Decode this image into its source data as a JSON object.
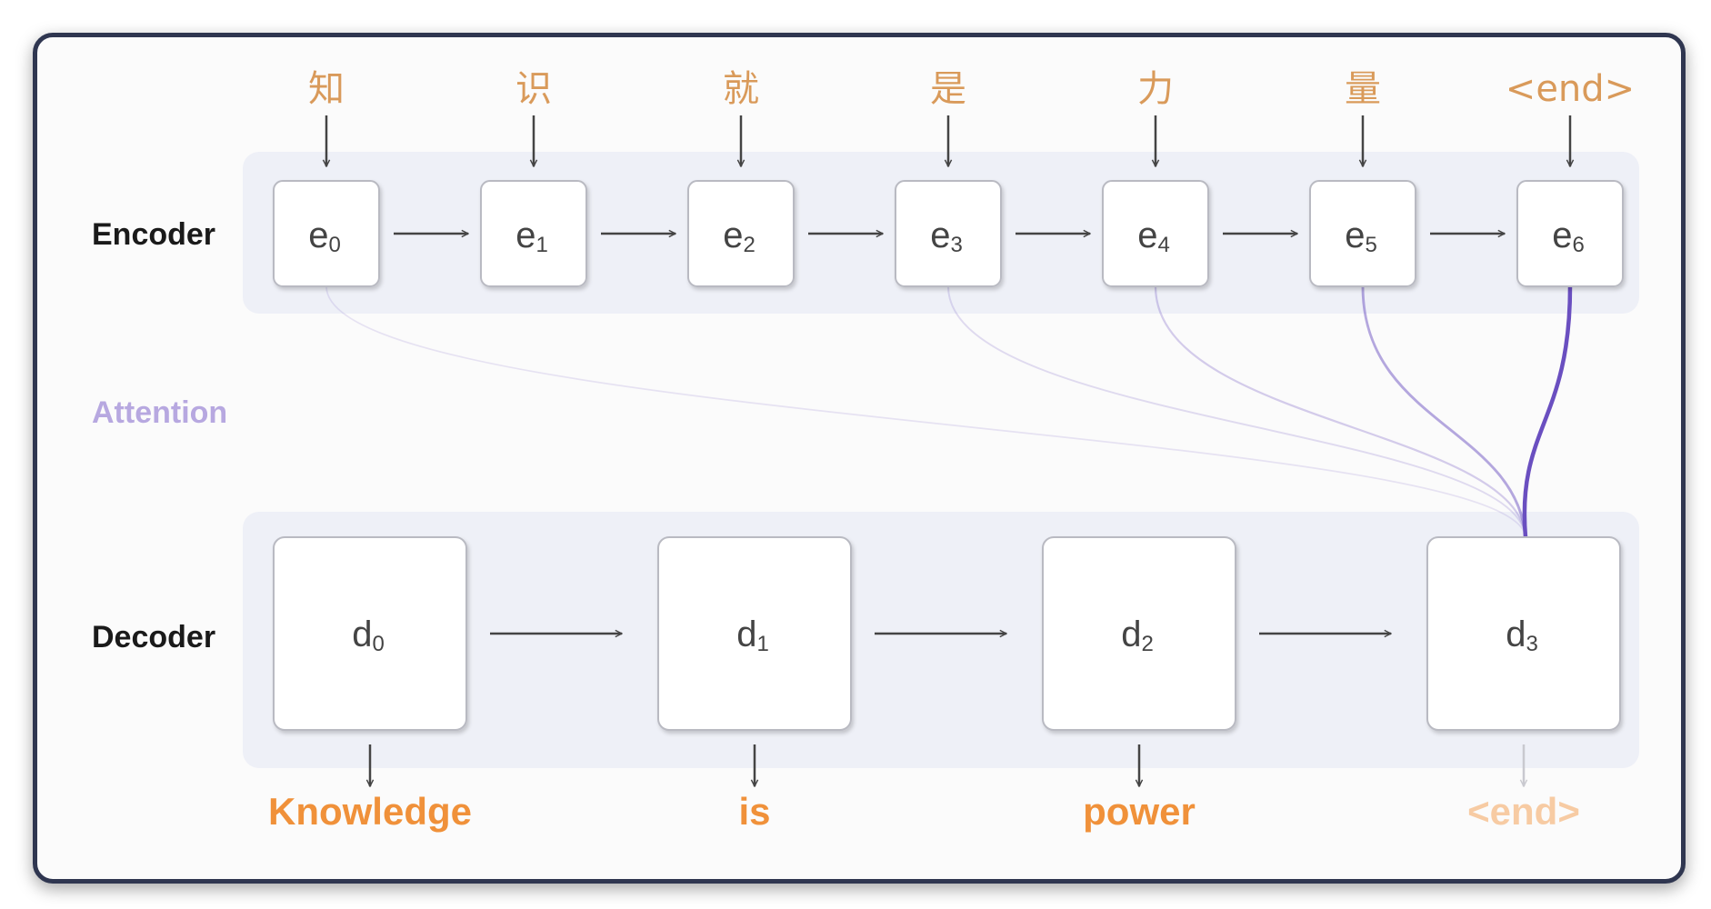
{
  "labels": {
    "encoder": "Encoder",
    "attention": "Attention",
    "decoder": "Decoder"
  },
  "encoder": {
    "inputs": [
      "知",
      "识",
      "就",
      "是",
      "力",
      "量",
      "<end>"
    ],
    "nodes": [
      {
        "base": "e",
        "sub": "0"
      },
      {
        "base": "e",
        "sub": "1"
      },
      {
        "base": "e",
        "sub": "2"
      },
      {
        "base": "e",
        "sub": "3"
      },
      {
        "base": "e",
        "sub": "4"
      },
      {
        "base": "e",
        "sub": "5"
      },
      {
        "base": "e",
        "sub": "6"
      }
    ]
  },
  "decoder": {
    "nodes": [
      {
        "base": "d",
        "sub": "0"
      },
      {
        "base": "d",
        "sub": "1"
      },
      {
        "base": "d",
        "sub": "2"
      },
      {
        "base": "d",
        "sub": "3"
      }
    ],
    "outputs": [
      {
        "text": "Knowledge",
        "faint": false
      },
      {
        "text": "is",
        "faint": false
      },
      {
        "text": "power",
        "faint": false
      },
      {
        "text": "<end>",
        "faint": true
      }
    ]
  },
  "attention": {
    "target_decoder": 3,
    "weights": [
      0.06,
      0.0,
      0.0,
      0.12,
      0.22,
      0.45,
      1.0
    ]
  },
  "colors": {
    "attention": "#6a4fc0",
    "zh_token": "#d99a5a",
    "en_token": "#f0913a",
    "panel": "#eef0f7",
    "frame": "#2f3650"
  }
}
